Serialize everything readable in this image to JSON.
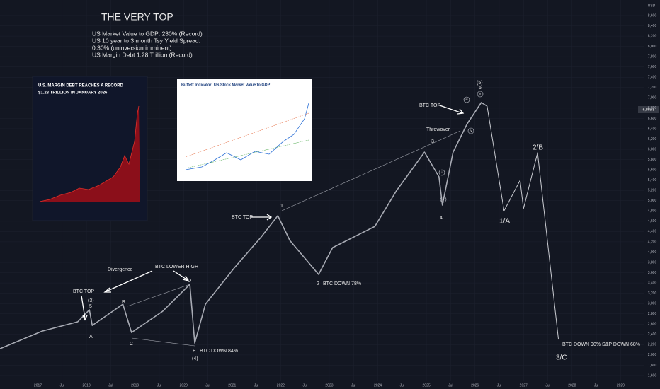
{
  "chart_data": {
    "type": "line",
    "currency": "USD",
    "last_price": "6,865.8",
    "series": [
      {
        "name": "S&P 500",
        "color": "#a8abb4",
        "x": [
          2016.22,
          2017.09,
          2017.82,
          2018.06,
          2018.12,
          2018.75,
          2018.93,
          2019.57,
          2020.13,
          2020.23,
          2020.45,
          2021.03,
          2021.6,
          2021.94,
          2022.19,
          2022.78,
          2023.07,
          2023.94,
          2024.38,
          2024.96,
          2025.26,
          2025.33,
          2025.55,
          2025.84,
          2026.13,
          2026.25
        ],
        "values": [
          2122,
          2465,
          2645,
          2878,
          2575,
          2988,
          2438,
          2850,
          3373,
          2231,
          2988,
          3676,
          4295,
          4708,
          4226,
          3566,
          4088,
          4501,
          5189,
          5945,
          5464,
          4914,
          5945,
          6496,
          6908,
          6839
        ]
      },
      {
        "name": "Projection",
        "color": "#c8cad0",
        "x": [
          2026.25,
          2026.6,
          2026.93,
          2027.0,
          2027.29,
          2027.72
        ],
        "values": [
          6839,
          4804,
          5395,
          4845,
          5932,
          2300
        ]
      }
    ],
    "xlim": [
      2016.22,
      2029.49
    ],
    "xticks": [
      2017,
      {
        "value": 2017.5,
        "label": "Jul"
      },
      2018,
      {
        "value": 2018.5,
        "label": "Jul"
      },
      2019,
      {
        "value": 2019.5,
        "label": "Jul"
      },
      2020,
      {
        "value": 2020.5,
        "label": "Jul"
      },
      2021,
      {
        "value": 2021.5,
        "label": "Jul"
      },
      2022,
      {
        "value": 2022.5,
        "label": "Jul"
      },
      2023,
      {
        "value": 2023.5,
        "label": "Jul"
      },
      2024,
      {
        "value": 2024.5,
        "label": "Jul"
      },
      2025,
      {
        "value": 2025.5,
        "label": "Jul"
      },
      2026,
      {
        "value": 2026.5,
        "label": "Jul"
      },
      2027,
      {
        "value": 2027.5,
        "label": "Jul"
      },
      2028,
      {
        "value": 2028.5,
        "label": "Jul"
      },
      2029
    ],
    "ylim": [
      1600,
      8600
    ],
    "yticks": [
      {
        "value": 1600,
        "label": "1,600"
      },
      {
        "value": 1800,
        "label": "1,800"
      },
      {
        "value": 2000,
        "label": "2,000"
      },
      {
        "value": 2200,
        "label": "2,200"
      },
      {
        "value": 2400,
        "label": "2,400"
      },
      {
        "value": 2600,
        "label": "2,600"
      },
      {
        "value": 2800,
        "label": "2,800"
      },
      {
        "value": 3000,
        "label": "3,000"
      },
      {
        "value": 3200,
        "label": "3,200"
      },
      {
        "value": 3400,
        "label": "3,400"
      },
      {
        "value": 3600,
        "label": "3,600"
      },
      {
        "value": 3800,
        "label": "3,800"
      },
      {
        "value": 4000,
        "label": "4,000"
      },
      {
        "value": 4200,
        "label": "4,200"
      },
      {
        "value": 4400,
        "label": "4,400"
      },
      {
        "value": 4600,
        "label": "4,600"
      },
      {
        "value": 4800,
        "label": "4,800"
      },
      {
        "value": 5000,
        "label": "5,000"
      },
      {
        "value": 5200,
        "label": "5,200"
      },
      {
        "value": 5400,
        "label": "5,400"
      },
      {
        "value": 5600,
        "label": "5,600"
      },
      {
        "value": 5800,
        "label": "5,800"
      },
      {
        "value": 6000,
        "label": "6,000"
      },
      {
        "value": 6200,
        "label": "6,200"
      },
      {
        "value": 6400,
        "label": "6,400"
      },
      {
        "value": 6600,
        "label": "6,600"
      },
      {
        "value": 6800,
        "label": "6,800"
      },
      {
        "value": 7000,
        "label": "7,000"
      },
      {
        "value": 7200,
        "label": "7,200"
      },
      {
        "value": 7400,
        "label": "7,400"
      },
      {
        "value": 7600,
        "label": "7,600"
      },
      {
        "value": 7800,
        "label": "7,800"
      },
      {
        "value": 8000,
        "label": "8,000"
      },
      {
        "value": 8200,
        "label": "8,200"
      },
      {
        "value": 8400,
        "label": "8,400"
      },
      {
        "value": 8600,
        "label": "8,600"
      }
    ],
    "grid": true
  },
  "annotations": {
    "title": "THE VERY TOP",
    "notes": [
      "US Market Value to GDP: 230% (Record)",
      "US 10 year to 3 month Tsy Yield Spread:",
      "0.30% (uninversion imminent)",
      "US Margin Debt 1.28 Trillion (Record)"
    ],
    "btc_top_1": "BTC TOP",
    "wave_3_paren": "(3)",
    "wave_5_a": "5",
    "wave_a": "A",
    "wave_b": "B",
    "wave_c": "C",
    "wave_d": "D",
    "wave_e": "E",
    "btc_down_84": "BTC DOWN 84%",
    "wave_4_paren": "(4)",
    "divergence": "Divergence",
    "btc_lower_high": "BTC LOWER HIGH",
    "btc_top_2": "BTC TOP",
    "wave_1": "1",
    "wave_2": "2",
    "btc_down_78": "BTC DOWN 78%",
    "wave_3": "3",
    "wave_4": "4",
    "throwover": "Throwover",
    "btc_top_3": "BTC TOP",
    "wave_5_paren": "(5)",
    "wave_5_b": "5",
    "target_1a": "1/A",
    "target_2b": "2/B",
    "target_3c": "3/C",
    "final_note": "BTC DOWN 90% S&P DOWN 68%",
    "sub_i": "i",
    "sub_ii": "ii",
    "sub_iii": "iii",
    "sub_iv": "iv",
    "sub_v": "v"
  },
  "insets": {
    "margin_title_1": "U.S. MARGIN DEBT REACHES A RECORD",
    "margin_title_2": "$1.28 TRILLION IN JANUARY 2026",
    "buffett_title": "Buffett Indicator: US Stock Market Value to GDP"
  }
}
